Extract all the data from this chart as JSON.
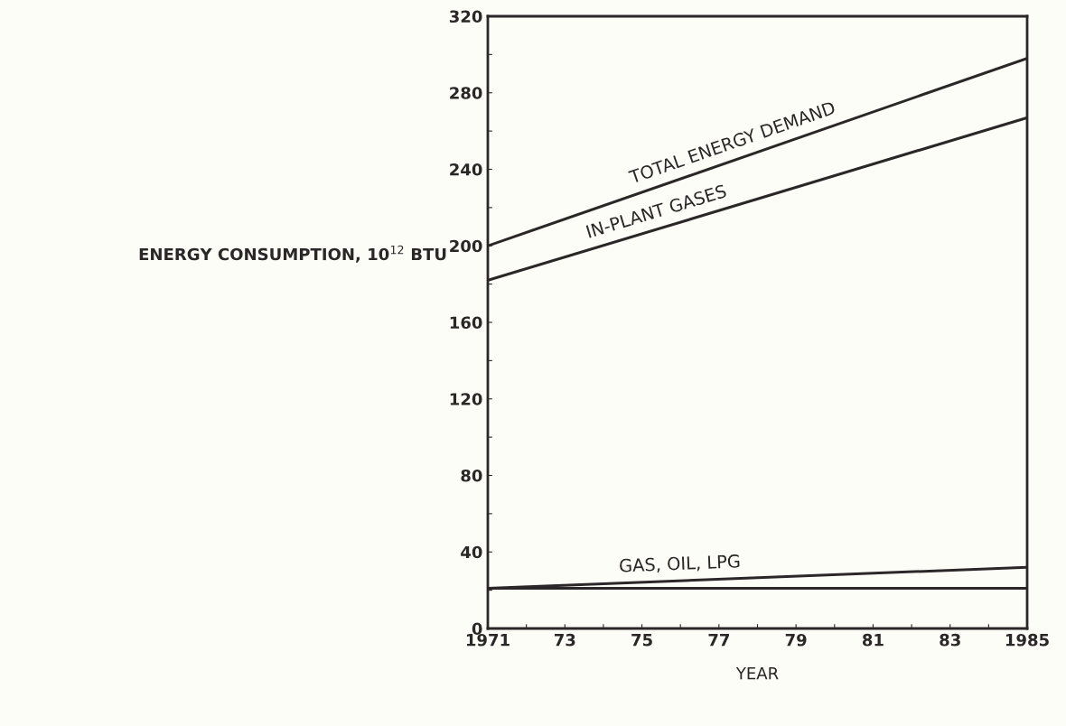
{
  "chart_data": {
    "type": "line",
    "xlabel": "YEAR",
    "ylabel": "ENERGY CONSUMPTION, 10$^{12}$ BTU",
    "x": [
      1971,
      1985
    ],
    "series": [
      {
        "color": "#2b2728",
        "values": [
          200,
          298
        ]
      },
      {
        "color": "#2b2728",
        "values": [
          182,
          267
        ]
      },
      {
        "color": "#2b2728",
        "values": [
          21,
          32
        ]
      },
      {
        "color": "#2b2728",
        "values": [
          21,
          21
        ]
      }
    ],
    "annotations": [
      {
        "text": "TOTAL ENERGY DEMAND",
        "x": 1977.5,
        "y": 245.5
      },
      {
        "text": "IN-PLANT GASES",
        "x": 1975.5,
        "y": 209.3
      },
      {
        "text": "GAS, OIL, LPG",
        "x": 1976,
        "y": 24.9
      }
    ],
    "xlim": [
      1971,
      1985
    ],
    "ylim": [
      0,
      320
    ],
    "xticks": [
      1971,
      {
        "value": 1972,
        "label": null
      },
      {
        "value": 1973,
        "label": "73"
      },
      {
        "value": 1974,
        "label": null
      },
      {
        "value": 1975,
        "label": "75"
      },
      {
        "value": 1976,
        "label": null
      },
      {
        "value": 1977,
        "label": "77"
      },
      {
        "value": 1978,
        "label": null
      },
      {
        "value": 1979,
        "label": "79"
      },
      {
        "value": 1980,
        "label": null
      },
      {
        "value": 1981,
        "label": "81"
      },
      {
        "value": 1982,
        "label": null
      },
      {
        "value": 1983,
        "label": "83"
      },
      {
        "value": 1984,
        "label": null
      },
      1985
    ],
    "yticks": [
      0,
      {
        "value": 20,
        "label": null
      },
      40,
      {
        "value": 60,
        "label": null
      },
      80,
      {
        "value": 100,
        "label": null
      },
      120,
      {
        "value": 140,
        "label": null
      },
      160,
      {
        "value": 180,
        "label": null
      },
      200,
      {
        "value": 220,
        "label": null
      },
      240,
      {
        "value": 260,
        "label": null
      },
      280,
      {
        "value": 300,
        "label": null
      },
      320
    ],
    "grid": false,
    "legend": false,
    "marker": "none",
    "line_style": "solid"
  }
}
